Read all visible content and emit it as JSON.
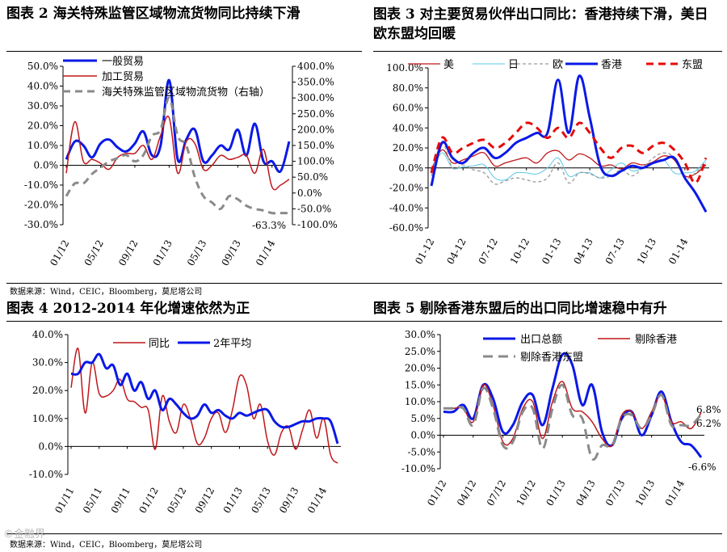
{
  "panels": [
    {
      "title": "图表 2 海关特殊监管区域物流货物同比持续下滑"
    },
    {
      "title": "图表 3 对主要贸易伙伴出口同比：香港持续下滑，美日欧东盟均回暖"
    },
    {
      "title": "图表 4 2012-2014 年化增速依然为正"
    },
    {
      "title": "图表 5 剔除香港东盟后的出口同比增速稳中有升"
    }
  ],
  "source": "数据来源：Wind，CEIC，Bloomberg，莫尼塔公司",
  "watermark": "©金融界",
  "chart_data": [
    {
      "id": "chart2",
      "type": "line",
      "title": "海关特殊监管区域物流货物同比持续下滑",
      "x": [
        "01/12",
        "02/12",
        "03/12",
        "04/12",
        "05/12",
        "06/12",
        "07/12",
        "08/12",
        "09/12",
        "10/12",
        "11/12",
        "12/12",
        "01/13",
        "02/13",
        "03/13",
        "04/13",
        "05/13",
        "06/13",
        "07/13",
        "08/13",
        "09/13",
        "10/13",
        "11/13",
        "12/13",
        "01/14",
        "02/14",
        "03/14"
      ],
      "xticks": [
        "01/12",
        "05/12",
        "09/12",
        "01/13",
        "05/13",
        "09/13",
        "01/14"
      ],
      "ylim": [
        -30,
        50
      ],
      "yticks": [
        "50.0%",
        "40.0%",
        "30.0%",
        "20.0%",
        "10.0%",
        "0.0%",
        "-10.0%",
        "-20.0%",
        "-30.0%"
      ],
      "y2lim": [
        -100,
        400
      ],
      "y2ticks": [
        "400.0%",
        "350.0%",
        "300.0%",
        "250.0%",
        "200.0%",
        "150.0%",
        "100.0%",
        "50.0%",
        "0.0%",
        "-50.0%",
        "-100.0%"
      ],
      "annotation": "-63.3%",
      "series": [
        {
          "name": "一般贸易",
          "axis": "left",
          "color": "#0a19e6",
          "dash": "",
          "width": 3,
          "values": [
            3,
            12,
            10,
            4,
            11,
            13,
            9,
            7,
            11,
            17,
            5,
            10,
            43,
            3,
            13,
            18,
            2,
            5,
            10,
            8,
            18,
            5,
            21,
            2,
            2,
            -3,
            12
          ]
        },
        {
          "name": "加工贸易",
          "axis": "left",
          "color": "#c0171a",
          "dash": "",
          "width": 1.5,
          "values": [
            -4,
            22,
            2,
            3,
            1,
            -2,
            4,
            6,
            6,
            10,
            3,
            15,
            24,
            -4,
            12,
            11,
            -2,
            0,
            5,
            3,
            4,
            5,
            -4,
            8,
            -11,
            -10,
            -7
          ]
        },
        {
          "name": "海关特殊监管区域物流货物（右轴）",
          "axis": "right",
          "color": "#8a8a8a",
          "dash": "9,6",
          "width": 3,
          "values": [
            -10,
            30,
            30,
            60,
            80,
            100,
            110,
            120,
            100,
            120,
            180,
            200,
            300,
            180,
            150,
            50,
            -10,
            -30,
            -50,
            -10,
            -20,
            -40,
            -50,
            -55,
            -63.3,
            -63.3,
            -63.3
          ]
        }
      ]
    },
    {
      "id": "chart3",
      "type": "line",
      "title": "对主要贸易伙伴出口同比",
      "x": [
        "01/12",
        "02/12",
        "03/12",
        "04/12",
        "05/12",
        "06/12",
        "07/12",
        "08/12",
        "09/12",
        "10/12",
        "11/12",
        "12/12",
        "01/13",
        "02/13",
        "03/13",
        "04/13",
        "05/13",
        "06/13",
        "07/13",
        "08/13",
        "09/13",
        "10/13",
        "11/13",
        "12/13",
        "01/14",
        "02/14",
        "03/14"
      ],
      "xticks": [
        "01-12",
        "04-12",
        "07-12",
        "10-12",
        "01-13",
        "04-13",
        "07-13",
        "10-13",
        "01-14"
      ],
      "ylim": [
        -60,
        100
      ],
      "yticks": [
        "100.0%",
        "80.0%",
        "60.0%",
        "40.0%",
        "20.0%",
        "0.0%",
        "-20.0%",
        "-40.0%",
        "-60.0%"
      ],
      "series": [
        {
          "name": "美",
          "color": "#c0171a",
          "dash": "",
          "width": 1.3,
          "values": [
            -2,
            18,
            5,
            8,
            12,
            15,
            2,
            5,
            8,
            10,
            5,
            15,
            17,
            8,
            14,
            10,
            2,
            3,
            -1,
            5,
            3,
            6,
            12,
            8,
            -8,
            -6,
            3
          ]
        },
        {
          "name": "日",
          "color": "#5ac8e6",
          "dash": "",
          "width": 1,
          "values": [
            -5,
            15,
            0,
            1,
            2,
            3,
            -10,
            -12,
            -5,
            -5,
            -6,
            0,
            10,
            -8,
            -5,
            -5,
            -10,
            -2,
            5,
            -3,
            0,
            5,
            8,
            -5,
            -5,
            -3,
            8
          ]
        },
        {
          "name": "欧",
          "color": "#9a9a9a",
          "dash": "4,3",
          "width": 1.3,
          "values": [
            -8,
            25,
            0,
            3,
            -2,
            -5,
            -16,
            -13,
            -10,
            -12,
            -14,
            -10,
            5,
            -15,
            -5,
            -6,
            -10,
            -8,
            -2,
            -8,
            0,
            10,
            15,
            10,
            -10,
            -5,
            5
          ]
        },
        {
          "name": "香港",
          "color": "#0a19e6",
          "dash": "",
          "width": 3,
          "values": [
            -18,
            25,
            10,
            5,
            15,
            20,
            10,
            15,
            25,
            30,
            35,
            35,
            88,
            35,
            92,
            50,
            2,
            -8,
            -3,
            2,
            0,
            5,
            8,
            10,
            -10,
            -25,
            -44
          ]
        },
        {
          "name": "东盟",
          "color": "#e60a0a",
          "dash": "9,6",
          "width": 3,
          "values": [
            -5,
            30,
            15,
            20,
            25,
            28,
            20,
            25,
            35,
            45,
            40,
            30,
            40,
            30,
            45,
            35,
            20,
            10,
            20,
            22,
            15,
            22,
            25,
            18,
            5,
            -15,
            10
          ]
        }
      ]
    },
    {
      "id": "chart4",
      "type": "line",
      "title": "2012-2014 年化增速依然为正",
      "x": [
        "01/11",
        "02/11",
        "03/11",
        "04/11",
        "05/11",
        "06/11",
        "07/11",
        "08/11",
        "09/11",
        "10/11",
        "11/11",
        "12/11",
        "01/12",
        "02/12",
        "03/12",
        "04/12",
        "05/12",
        "06/12",
        "07/12",
        "08/12",
        "09/12",
        "10/12",
        "11/12",
        "12/12",
        "01/13",
        "02/13",
        "03/13",
        "04/13",
        "05/13",
        "06/13",
        "07/13",
        "08/13",
        "09/13",
        "10/13",
        "11/13",
        "12/13",
        "01/14",
        "02/14",
        "03/14"
      ],
      "xticks": [
        "01/11",
        "05/11",
        "09/11",
        "01/12",
        "05/12",
        "09/12",
        "01/13",
        "05/13",
        "09/13",
        "01/14"
      ],
      "ylim": [
        -10,
        40
      ],
      "yticks": [
        "40.0%",
        "30.0%",
        "20.0%",
        "10.0%",
        "0.0%",
        "-10.0%"
      ],
      "series": [
        {
          "name": "同比",
          "color": "#c0171a",
          "dash": "",
          "width": 1.5,
          "values": [
            21,
            35,
            12,
            30,
            19,
            18,
            20,
            24,
            17,
            16,
            14,
            13,
            -1,
            18,
            9,
            5,
            15,
            10,
            1,
            3,
            10,
            12,
            5,
            13,
            25,
            22,
            10,
            15,
            2,
            -3,
            5,
            7,
            -1,
            6,
            13,
            3,
            10,
            -3,
            -6
          ]
        },
        {
          "name": "2年平均",
          "color": "#0a19e6",
          "dash": "",
          "width": 3,
          "values": [
            26,
            26,
            30,
            30,
            33,
            28,
            29,
            22,
            26,
            20,
            23,
            17,
            20,
            13,
            17,
            15,
            12,
            10,
            11,
            15,
            12,
            13,
            11,
            10,
            12,
            11,
            12,
            13,
            13,
            9,
            7,
            7,
            8,
            9,
            9,
            10,
            10,
            9,
            1
          ]
        }
      ]
    },
    {
      "id": "chart5",
      "type": "line",
      "title": "剔除香港东盟后的出口同比增速稳中有升",
      "x": [
        "01/12",
        "02/12",
        "03/12",
        "04/12",
        "05/12",
        "06/12",
        "07/12",
        "08/12",
        "09/12",
        "10/12",
        "11/12",
        "12/12",
        "01/13",
        "02/13",
        "03/13",
        "04/13",
        "05/13",
        "06/13",
        "07/13",
        "08/13",
        "09/13",
        "10/13",
        "11/13",
        "12/13",
        "01/14",
        "02/14",
        "03/14"
      ],
      "xticks": [
        "01/12",
        "04/12",
        "07/12",
        "10/12",
        "01/13",
        "04/13",
        "07/13",
        "10/13",
        "01/14"
      ],
      "ylim": [
        -10,
        30
      ],
      "yticks": [
        "30.0%",
        "25.0%",
        "20.0%",
        "15.0%",
        "10.0%",
        "5.0%",
        "0.0%",
        "-5.0%",
        "-10.0%"
      ],
      "annotations": [
        "6.8%",
        "6.2%",
        "-6.6%"
      ],
      "series": [
        {
          "name": "出口总额",
          "color": "#0a19e6",
          "dash": "",
          "width": 3,
          "values": [
            7,
            7,
            9,
            5,
            15,
            11,
            1,
            3,
            10,
            12,
            3,
            14,
            24,
            21,
            9,
            15,
            1,
            -3,
            5,
            7,
            0,
            6,
            13,
            4,
            -2,
            -3,
            -6.6
          ]
        },
        {
          "name": "剔除香港",
          "color": "#c0171a",
          "dash": "",
          "width": 1.5,
          "values": [
            8,
            8,
            8,
            4,
            15,
            9,
            -2,
            -1,
            8,
            10,
            -1,
            10,
            16,
            8,
            7,
            4,
            -1,
            -3,
            6,
            7,
            2,
            7,
            12,
            4,
            4,
            2,
            6.8
          ]
        },
        {
          "name": "剔除香港东盟",
          "color": "#8a8a8a",
          "dash": "12,7",
          "width": 3,
          "values": [
            8,
            8,
            8,
            3,
            14,
            8,
            -3,
            -2,
            7,
            8,
            -4,
            8,
            15,
            6,
            5,
            -7,
            -3,
            -3,
            5,
            6,
            2,
            6,
            12,
            3,
            3,
            3,
            6.2
          ]
        }
      ]
    }
  ]
}
